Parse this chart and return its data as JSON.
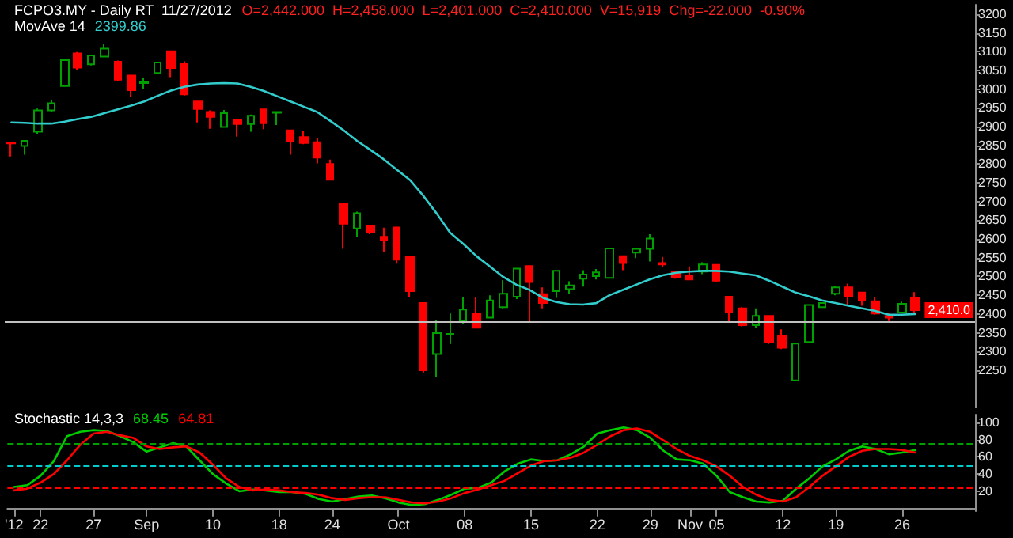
{
  "chart_data": [
    {
      "type": "candlestick",
      "title": "FCPO3.MY - Daily RT  11/27/2012",
      "subtitle": "O=2,442.000  H=2,458.000  L=2,401.000  C=2,410.000  V=15,919  Chg=-22.000  -0.90%",
      "annotations": [
        "2399.86",
        "2,410.0"
      ],
      "ylim": [
        2140,
        3225
      ],
      "yticks": [
        2250,
        2300,
        2350,
        2400,
        2450,
        2500,
        2550,
        2600,
        2650,
        2700,
        2750,
        2800,
        2850,
        2900,
        2950,
        3000,
        3050,
        3100,
        3150,
        3200
      ],
      "tick_labels": "y",
      "series": [
        {
          "ohlc": [
            [
              2857,
              2858,
              2820,
              2855
            ],
            [
              2848,
              2862,
              2825,
              2862
            ],
            [
              2886,
              2948,
              2881,
              2943
            ],
            [
              2943,
              2971,
              2940,
              2962
            ],
            [
              3008,
              3077,
              3008,
              3077
            ],
            [
              3095,
              3099,
              3052,
              3057
            ],
            [
              3066,
              3092,
              3063,
              3090
            ],
            [
              3087,
              3120,
              3087,
              3108
            ],
            [
              3073,
              3076,
              3022,
              3025
            ],
            [
              3036,
              3036,
              2978,
              2997
            ],
            [
              3016,
              3029,
              3001,
              3020
            ],
            [
              3043,
              3071,
              3039,
              3071
            ],
            [
              3101,
              3101,
              3032,
              3056
            ],
            [
              3067,
              3074,
              2983,
              2986
            ],
            [
              2967,
              2967,
              2911,
              2947
            ],
            [
              2939,
              2943,
              2894,
              2926
            ],
            [
              2899,
              2944,
              2898,
              2936
            ],
            [
              2919,
              2920,
              2873,
              2907
            ],
            [
              2907,
              2932,
              2886,
              2929
            ],
            [
              2946,
              2946,
              2893,
              2909
            ],
            [
              2937,
              2940,
              2904,
              2939
            ],
            [
              2890,
              2890,
              2825,
              2860
            ],
            [
              2872,
              2887,
              2853,
              2856
            ],
            [
              2858,
              2870,
              2802,
              2817
            ],
            [
              2800,
              2812,
              2756,
              2758
            ],
            [
              2694,
              2694,
              2574,
              2641
            ],
            [
              2628,
              2673,
              2605,
              2669
            ],
            [
              2635,
              2638,
              2613,
              2617
            ],
            [
              2606,
              2630,
              2566,
              2596
            ],
            [
              2631,
              2631,
              2534,
              2545
            ],
            [
              2552,
              2556,
              2446,
              2461
            ],
            [
              2429,
              2429,
              2244,
              2250
            ],
            [
              2293,
              2384,
              2233,
              2349
            ],
            [
              2345,
              2401,
              2320,
              2347
            ],
            [
              2381,
              2446,
              2373,
              2412
            ],
            [
              2401,
              2446,
              2361,
              2363
            ],
            [
              2390,
              2450,
              2389,
              2436
            ],
            [
              2418,
              2490,
              2415,
              2454
            ],
            [
              2446,
              2521,
              2440,
              2521
            ],
            [
              2528,
              2528,
              2378,
              2485
            ],
            [
              2453,
              2471,
              2415,
              2429
            ],
            [
              2461,
              2515,
              2443,
              2515
            ],
            [
              2466,
              2487,
              2454,
              2476
            ],
            [
              2494,
              2517,
              2473,
              2505
            ],
            [
              2501,
              2520,
              2492,
              2511
            ],
            [
              2496,
              2575,
              2496,
              2575
            ],
            [
              2554,
              2554,
              2517,
              2536
            ],
            [
              2564,
              2577,
              2549,
              2574
            ],
            [
              2574,
              2613,
              2540,
              2601
            ],
            [
              2536,
              2552,
              2524,
              2532
            ],
            [
              2513,
              2513,
              2494,
              2499
            ],
            [
              2503,
              2527,
              2492,
              2492
            ],
            [
              2513,
              2538,
              2506,
              2532
            ],
            [
              2531,
              2531,
              2485,
              2489
            ],
            [
              2446,
              2446,
              2380,
              2404
            ],
            [
              2415,
              2418,
              2367,
              2370
            ],
            [
              2370,
              2415,
              2362,
              2395
            ],
            [
              2395,
              2395,
              2320,
              2324
            ],
            [
              2341,
              2359,
              2306,
              2310
            ],
            [
              2223,
              2323,
              2220,
              2321
            ],
            [
              2325,
              2424,
              2322,
              2424
            ],
            [
              2418,
              2430,
              2417,
              2429
            ],
            [
              2454,
              2475,
              2450,
              2471
            ],
            [
              2471,
              2481,
              2425,
              2448
            ],
            [
              2457,
              2457,
              2422,
              2436
            ],
            [
              2434,
              2444,
              2398,
              2401
            ],
            [
              2395,
              2404,
              2381,
              2390
            ],
            [
              2404,
              2433,
              2401,
              2427
            ],
            [
              2442,
              2458,
              2401,
              2410
            ],
            null,
            null,
            null,
            null
          ],
          "colors": [
            "#ff0000",
            "#00a000",
            "#00a000",
            "#00a000",
            "#00a000",
            "#ff0000",
            "#00a000",
            "#00a000",
            "#ff0000",
            "#ff0000",
            "#00a000",
            "#00a000",
            "#ff0000",
            "#ff0000",
            "#ff0000",
            "#ff0000",
            "#00a000",
            "#ff0000",
            "#00a000",
            "#ff0000",
            "#00a000",
            "#ff0000",
            "#ff0000",
            "#ff0000",
            "#ff0000",
            "#ff0000",
            "#00a000",
            "#ff0000",
            "#ff0000",
            "#ff0000",
            "#ff0000",
            "#ff0000",
            "#00a000",
            "#00a000",
            "#00a000",
            "#ff0000",
            "#00a000",
            "#00a000",
            "#00a000",
            "#ff0000",
            "#ff0000",
            "#00a000",
            "#00a000",
            "#00a000",
            "#00a000",
            "#00a000",
            "#ff0000",
            "#00a000",
            "#00a000",
            "#ff0000",
            "#ff0000",
            "#ff0000",
            "#00a000",
            "#ff0000",
            "#ff0000",
            "#ff0000",
            "#00a000",
            "#ff0000",
            "#ff0000",
            "#00a000",
            "#00a000",
            "#00a000",
            "#00a000",
            "#ff0000",
            "#ff0000",
            "#ff0000",
            "#ff0000",
            "#00a000",
            "#ff0000",
            null,
            null,
            null,
            null
          ]
        },
        {
          "type": "line",
          "name": "MovAve 14",
          "color": "#33cccc",
          "values": [
            2911,
            2910,
            2908,
            2908,
            2913,
            2920,
            2926,
            2936,
            2946,
            2956,
            2967,
            2982,
            2996,
            3006,
            3012,
            3015,
            3016,
            3015,
            3006,
            2995,
            2981,
            2967,
            2953,
            2939,
            2915,
            2890,
            2862,
            2838,
            2813,
            2785,
            2757,
            2715,
            2668,
            2617,
            2587,
            2554,
            2527,
            2499,
            2478,
            2464,
            2443,
            2432,
            2426,
            2425,
            2429,
            2450,
            2464,
            2478,
            2492,
            2503,
            2510,
            2513,
            2515,
            2515,
            2513,
            2508,
            2503,
            2489,
            2473,
            2457,
            2447,
            2436,
            2429,
            2422,
            2415,
            2408,
            2398,
            2398,
            2400,
            null,
            null,
            null,
            null
          ]
        }
      ],
      "ref_lines": [
        {
          "axis": "y",
          "value": 2380,
          "color": "#c0c0c0"
        }
      ]
    },
    {
      "type": "line",
      "title": "Stochastic 14,3,3",
      "annotations": [
        "68.45",
        "64.81"
      ],
      "categories": [
        "'12",
        null,
        "22",
        null,
        null,
        null,
        "27",
        null,
        null,
        null,
        "Sep",
        null,
        null,
        null,
        null,
        "10",
        null,
        null,
        null,
        null,
        "18",
        null,
        null,
        null,
        "24",
        null,
        null,
        null,
        null,
        "Oct",
        null,
        null,
        null,
        null,
        "08",
        null,
        null,
        null,
        null,
        "15",
        null,
        null,
        null,
        null,
        "22",
        null,
        null,
        null,
        "29",
        null,
        null,
        "Nov",
        null,
        "05",
        null,
        null,
        null,
        null,
        "12",
        null,
        null,
        null,
        "19",
        null,
        null,
        null,
        null,
        "26",
        null,
        null,
        null,
        null,
        null
      ],
      "ylim": [
        -3,
        109
      ],
      "yticks": [
        20,
        40,
        60,
        80,
        100
      ],
      "series": [
        {
          "color": "#00cc00",
          "values": [
            25,
            27,
            38,
            55,
            84,
            89,
            91,
            90,
            84,
            77,
            66,
            71,
            76,
            72,
            56,
            40,
            29,
            20,
            22,
            21,
            19,
            19,
            17,
            11,
            8,
            11,
            14,
            15,
            12,
            7,
            4,
            5,
            10,
            16,
            23,
            24,
            30,
            43,
            52,
            57,
            55,
            56,
            63,
            72,
            87,
            91,
            94,
            91,
            82,
            67,
            57,
            56,
            52,
            38,
            19,
            13,
            8,
            7,
            9,
            23,
            35,
            49,
            57,
            67,
            72,
            69,
            63,
            65,
            68,
            null,
            null,
            null,
            null
          ]
        },
        {
          "color": "#ff0000",
          "values": [
            21,
            23,
            30,
            40,
            56,
            74,
            87,
            89,
            85,
            82,
            72,
            69,
            71,
            72,
            65,
            51,
            35,
            25,
            21,
            22,
            21,
            19,
            18,
            16,
            12,
            10,
            12,
            13,
            13,
            10,
            7,
            6,
            8,
            12,
            18,
            22,
            27,
            32,
            41,
            50,
            55,
            56,
            59,
            65,
            74,
            84,
            91,
            93,
            89,
            79,
            69,
            61,
            56,
            49,
            38,
            25,
            16,
            10,
            8,
            13,
            25,
            38,
            49,
            60,
            67,
            69,
            69,
            68,
            65,
            null,
            null,
            null,
            null
          ]
        }
      ],
      "ref_lines": [
        {
          "axis": "y",
          "value": 75,
          "color": "#00a000",
          "line_style": "dashed"
        },
        {
          "axis": "y",
          "value": 50,
          "color": "#00cccc",
          "line_style": "dashed"
        },
        {
          "axis": "y",
          "value": 25,
          "color": "#ff0000",
          "line_style": "dashed"
        }
      ]
    }
  ]
}
